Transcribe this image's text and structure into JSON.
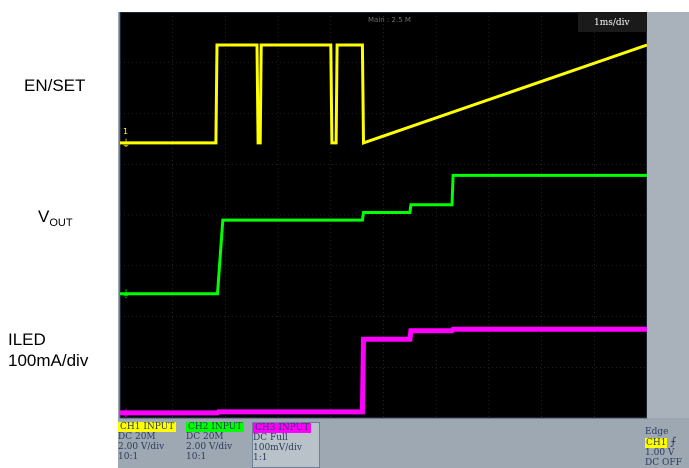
{
  "labels": {
    "en_set": "EN/SET",
    "vout_main": "V",
    "vout_sub": "OUT",
    "iled_line1": "ILED",
    "iled_line2": "100mA/div"
  },
  "header": {
    "record": "Main : 2.5 M",
    "timebase": "1ms/div"
  },
  "channels": [
    {
      "head": "CH1  INPUT",
      "coupling": "DC 20M",
      "scale": "2.00 V/div",
      "probe": "10:1",
      "color": "#ffff00"
    },
    {
      "head": "CH2  INPUT",
      "coupling": "DC 20M",
      "scale": "2.00 V/div",
      "probe": "10:1",
      "color": "#00ff00"
    },
    {
      "head": "CH3  INPUT",
      "coupling": "DC Full",
      "scale": "100mV/div",
      "probe": "1:1",
      "color": "#ff00ff"
    }
  ],
  "trigger": {
    "mode": "Edge",
    "source": "CH1",
    "level": "1.00 V",
    "coupling": "DC OFF"
  },
  "markers": {
    "ch1": "1",
    "ground": "⏚"
  },
  "colors": {
    "ch1": "#ffff00",
    "ch2": "#00ff00",
    "ch3": "#ff00ff",
    "screen": "#000000",
    "panel": "#9ea8b2"
  },
  "chart_data": {
    "type": "line",
    "xlabel": "",
    "ylabel": "",
    "x_unit_per_div": "1ms/div",
    "xlim_divisions": [
      0,
      10
    ],
    "ylim_divisions": [
      0,
      8
    ],
    "grid": true,
    "series": [
      {
        "channel": "CH1",
        "x": [
          0,
          1.82,
          1.84,
          2.6,
          2.62,
          2.66,
          2.68,
          4.0,
          4.02,
          4.1,
          4.12,
          4.6,
          4.62,
          10
        ],
        "y": [
          5.42,
          5.42,
          7.35,
          7.35,
          5.42,
          5.42,
          7.35,
          7.35,
          5.42,
          5.42,
          7.35,
          7.35,
          5.42,
          7.35
        ]
      },
      {
        "channel": "CH2",
        "x": [
          0,
          1.85,
          1.95,
          4.6,
          4.62,
          5.5,
          5.52,
          6.3,
          6.32,
          10
        ],
        "y": [
          2.45,
          2.45,
          3.9,
          3.9,
          4.05,
          4.05,
          4.2,
          4.2,
          4.78,
          4.78
        ]
      },
      {
        "channel": "CH3",
        "x": [
          0,
          1.85,
          1.87,
          4.6,
          4.62,
          5.5,
          5.52,
          6.3,
          6.32,
          10
        ],
        "y": [
          0.1,
          0.1,
          0.12,
          0.12,
          1.55,
          1.55,
          1.72,
          1.72,
          1.75,
          1.75
        ]
      }
    ]
  }
}
